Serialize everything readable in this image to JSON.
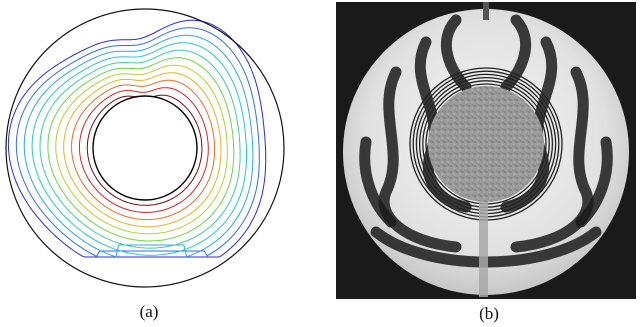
{
  "figure": {
    "panels": [
      {
        "id": "a",
        "label": "(a)"
      },
      {
        "id": "b",
        "label": "(b)"
      }
    ],
    "contour_colors": [
      "#2b2bd6",
      "#2f6fe0",
      "#2fa6e0",
      "#26c7c9",
      "#3fcf9a",
      "#6fd24a",
      "#b4d12f",
      "#e0b42a",
      "#e0702a",
      "#c8282a",
      "#6a1010"
    ]
  }
}
